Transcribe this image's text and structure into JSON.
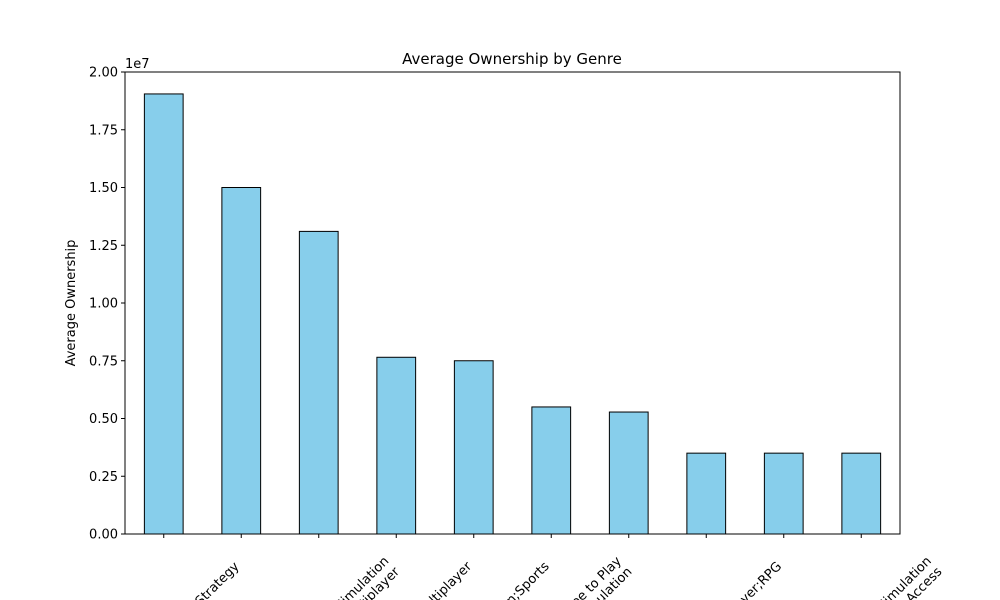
{
  "chart_data": {
    "type": "bar",
    "title": "Average Ownership by Genre",
    "xlabel": "",
    "ylabel": "Average Ownership",
    "offset_label": "1e7",
    "ylim": [
      0,
      20000000
    ],
    "yticks": [
      0,
      2500000,
      5000000,
      7500000,
      10000000,
      12500000,
      15000000,
      17500000,
      20000000
    ],
    "ytick_labels": [
      "0.00",
      "0.25",
      "0.50",
      "0.75",
      "1.00",
      "1.25",
      "1.50",
      "1.75",
      "2.00"
    ],
    "categories": [
      "y;Strategy",
      "",
      "Simulation\nMultiplayer",
      "Multiplayer",
      "tion;Sports",
      "Free to Play\nSimulation",
      "",
      "player;RPG",
      "",
      "Simulation\narly Access"
    ],
    "values": [
      19050000,
      15000000,
      13100000,
      7650000,
      7500000,
      5500000,
      5280000,
      3500000,
      3500000,
      3500000
    ],
    "bar_color": "#87ceeb",
    "edge_color": "#000000",
    "grid": false,
    "legend": "none"
  }
}
